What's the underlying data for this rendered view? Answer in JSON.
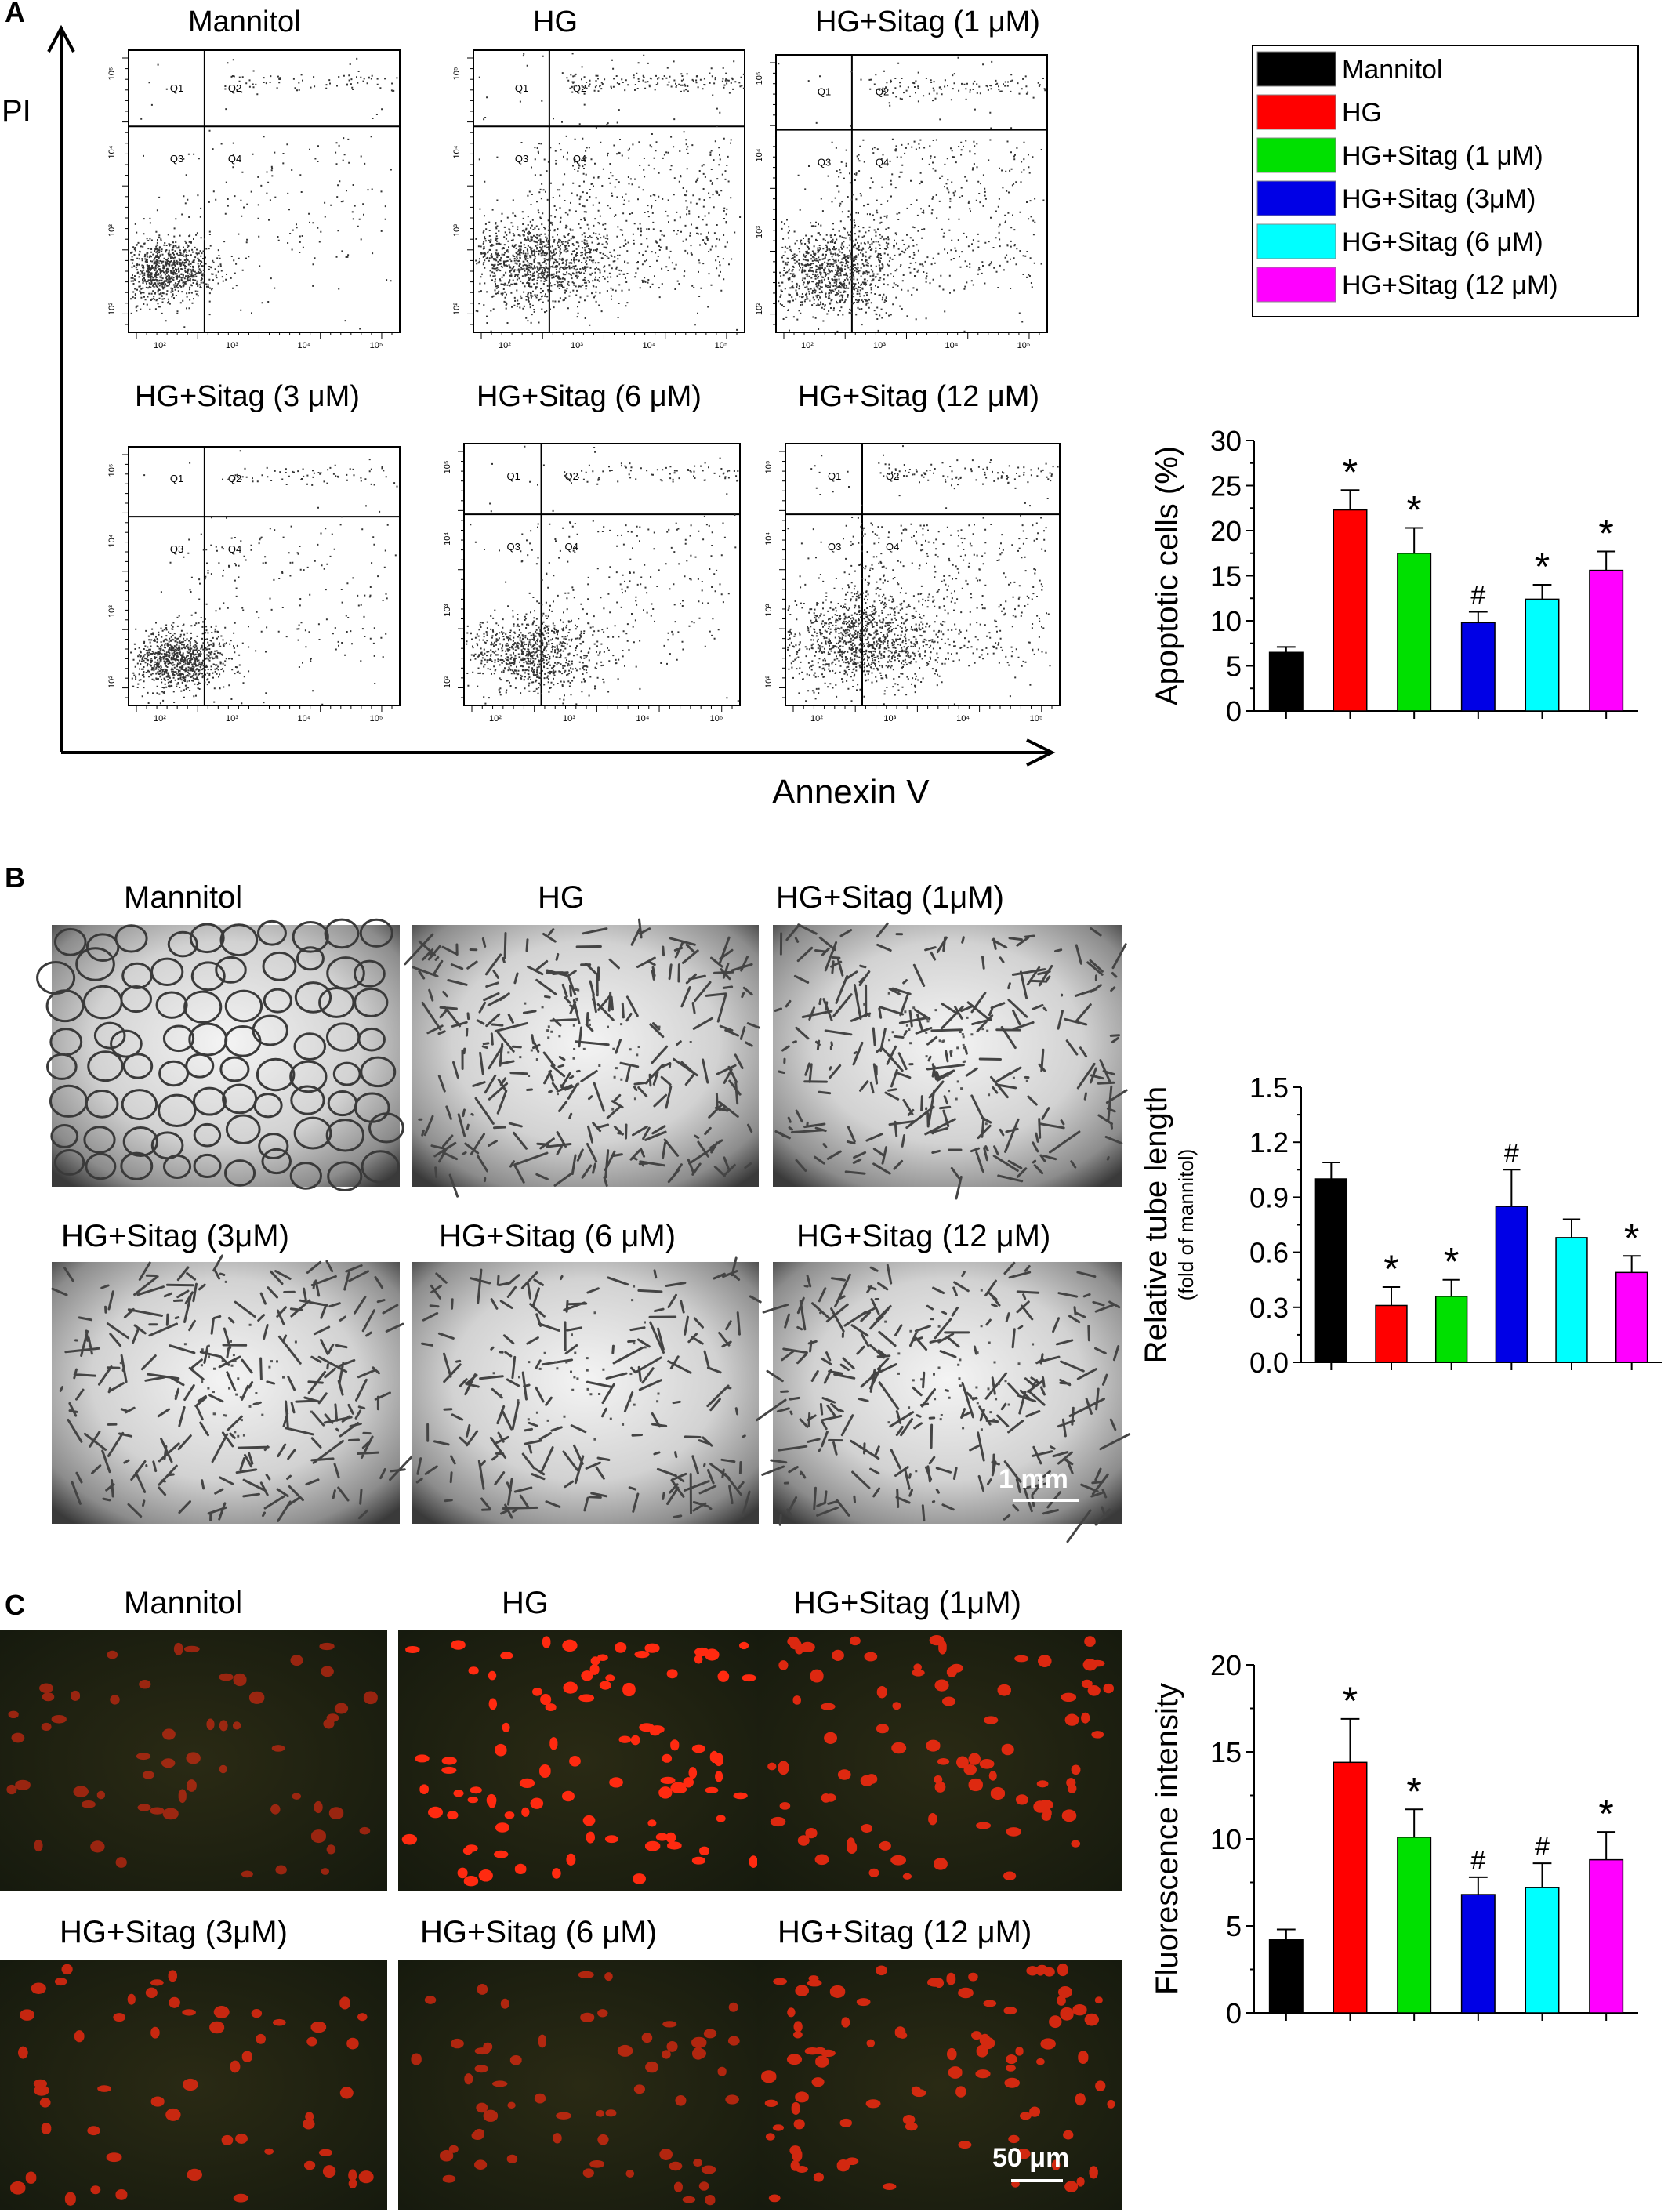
{
  "figure": {
    "panel_a": {
      "letter": "A",
      "pi_label": "PI",
      "annexin_label": "Annexin V",
      "plot_titles": [
        "Mannitol",
        "HG",
        "HG+Sitag (1 μM)",
        "HG+Sitag (3 μM)",
        "HG+Sitag (6 μM)",
        "HG+Sitag (12 μM)"
      ],
      "quadrants": [
        "Q1",
        "Q2",
        "Q3",
        "Q4"
      ],
      "x_ticks": [
        "10²",
        "10³",
        "10⁴",
        "10⁵"
      ],
      "y_ticks": [
        "10²",
        "10³",
        "10⁴",
        "10⁵"
      ]
    },
    "legend": [
      {
        "label": "Mannitol",
        "color": "#000000"
      },
      {
        "label": "HG",
        "color": "#ff0000"
      },
      {
        "label": "HG+Sitag (1 μM)",
        "color": "#00e000"
      },
      {
        "label": "HG+Sitag (3μM)",
        "color": "#0000e6"
      },
      {
        "label": "HG+Sitag (6 μM)",
        "color": "#00ffff"
      },
      {
        "label": "HG+Sitag (12 μM)",
        "color": "#ff00ff"
      }
    ],
    "panel_b": {
      "letter": "B",
      "image_titles": [
        "Mannitol",
        "HG",
        "HG+Sitag (1μM)",
        "HG+Sitag (3μM)",
        "HG+Sitag (6 μM)",
        "HG+Sitag (12 μM)"
      ],
      "scale_bar": "1 mm"
    },
    "panel_c": {
      "letter": "C",
      "image_titles": [
        "Mannitol",
        "HG",
        "HG+Sitag (1μM)",
        "HG+Sitag (3μM)",
        "HG+Sitag (6 μM)",
        "HG+Sitag (12 μM)"
      ],
      "scale_bar": "50 μm"
    }
  },
  "chart_data": [
    {
      "id": "apoptosis",
      "type": "bar",
      "ylabel": "Apoptotic cells (%)",
      "ylim": [
        0,
        30
      ],
      "yticks": [
        "0",
        "5",
        "10",
        "15",
        "20",
        "25",
        "30"
      ],
      "values": [
        6.5,
        22.3,
        17.5,
        9.8,
        12.4,
        15.6
      ],
      "errors": [
        0.6,
        2.2,
        2.8,
        1.2,
        1.6,
        2.1
      ],
      "markers": [
        "",
        "*",
        "*",
        "#",
        "*",
        "*"
      ],
      "colors": [
        "#000000",
        "#ff0000",
        "#00e000",
        "#0000e6",
        "#00ffff",
        "#ff00ff"
      ]
    },
    {
      "id": "tube",
      "type": "bar",
      "ylabel": "Relative tube length",
      "ylabel2": "(fold of mannitol)",
      "ylim": [
        0,
        1.5
      ],
      "yticks": [
        "0.0",
        "0.3",
        "0.6",
        "0.9",
        "1.2",
        "1.5"
      ],
      "values": [
        1.0,
        0.31,
        0.36,
        0.85,
        0.68,
        0.49
      ],
      "errors": [
        0.09,
        0.1,
        0.09,
        0.2,
        0.1,
        0.09
      ],
      "markers": [
        "",
        "*",
        "*",
        "#",
        "",
        "*"
      ],
      "colors": [
        "#000000",
        "#ff0000",
        "#00e000",
        "#0000e6",
        "#00ffff",
        "#ff00ff"
      ]
    },
    {
      "id": "fluor",
      "type": "bar",
      "ylabel": "Fluorescence intensity",
      "ylim": [
        0,
        20
      ],
      "yticks": [
        "0",
        "5",
        "10",
        "15",
        "20"
      ],
      "values": [
        4.2,
        14.4,
        10.1,
        6.8,
        7.2,
        8.8
      ],
      "errors": [
        0.6,
        2.5,
        1.6,
        1.0,
        1.4,
        1.6
      ],
      "markers": [
        "",
        "*",
        "*",
        "#",
        "#",
        "*"
      ],
      "colors": [
        "#000000",
        "#ff0000",
        "#00e000",
        "#0000e6",
        "#00ffff",
        "#ff00ff"
      ]
    }
  ]
}
